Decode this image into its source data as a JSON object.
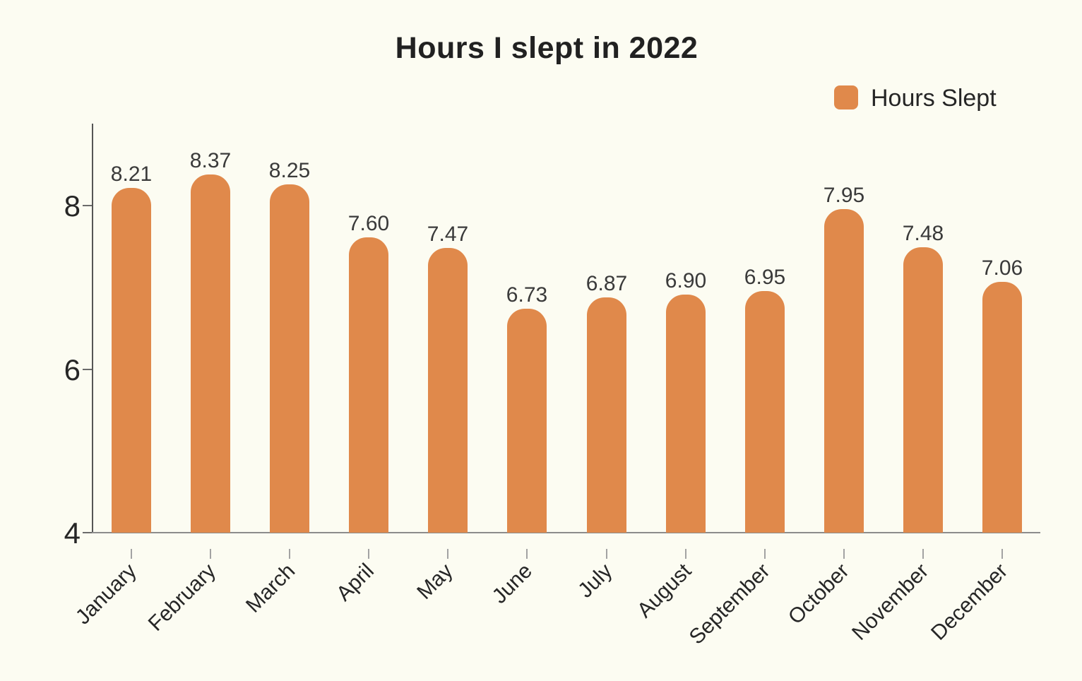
{
  "colors": {
    "background": "#FCFCF2",
    "bar": "#E0894B",
    "title_text": "#212121",
    "value_label_text": "#3A3A3A",
    "axis_label_text": "#262626",
    "y_axis_line": "#555555",
    "x_axis_line": "#8C8C8C",
    "y_tick_mark": "#6B6B6B",
    "x_tick_mark": "#A3A3A3"
  },
  "legend": {
    "label": "Hours Slept",
    "swatch_icon": "orange-rounded-square"
  },
  "chart_data": {
    "type": "bar",
    "title": "Hours I slept in 2022",
    "categories": [
      "January",
      "February",
      "March",
      "April",
      "May",
      "June",
      "July",
      "August",
      "September",
      "October",
      "November",
      "December"
    ],
    "series": [
      {
        "name": "Hours Slept",
        "values": [
          8.21,
          8.37,
          8.25,
          7.6,
          7.47,
          6.73,
          6.87,
          6.9,
          6.95,
          7.95,
          7.48,
          7.06
        ],
        "value_labels": [
          "8.21",
          "8.37",
          "8.25",
          "7.60",
          "7.47",
          "6.73",
          "6.87",
          "6.90",
          "6.95",
          "7.95",
          "7.48",
          "7.06"
        ]
      }
    ],
    "xlabel": "",
    "ylabel": "",
    "ylim": [
      4,
      9
    ],
    "yticks": [
      8,
      6,
      4
    ],
    "ytick_labels": [
      "8",
      "6",
      "4"
    ],
    "grid": false,
    "legend_position": "top-right",
    "bar_labels_shown": true,
    "x_labels_rotation_deg": -45
  }
}
